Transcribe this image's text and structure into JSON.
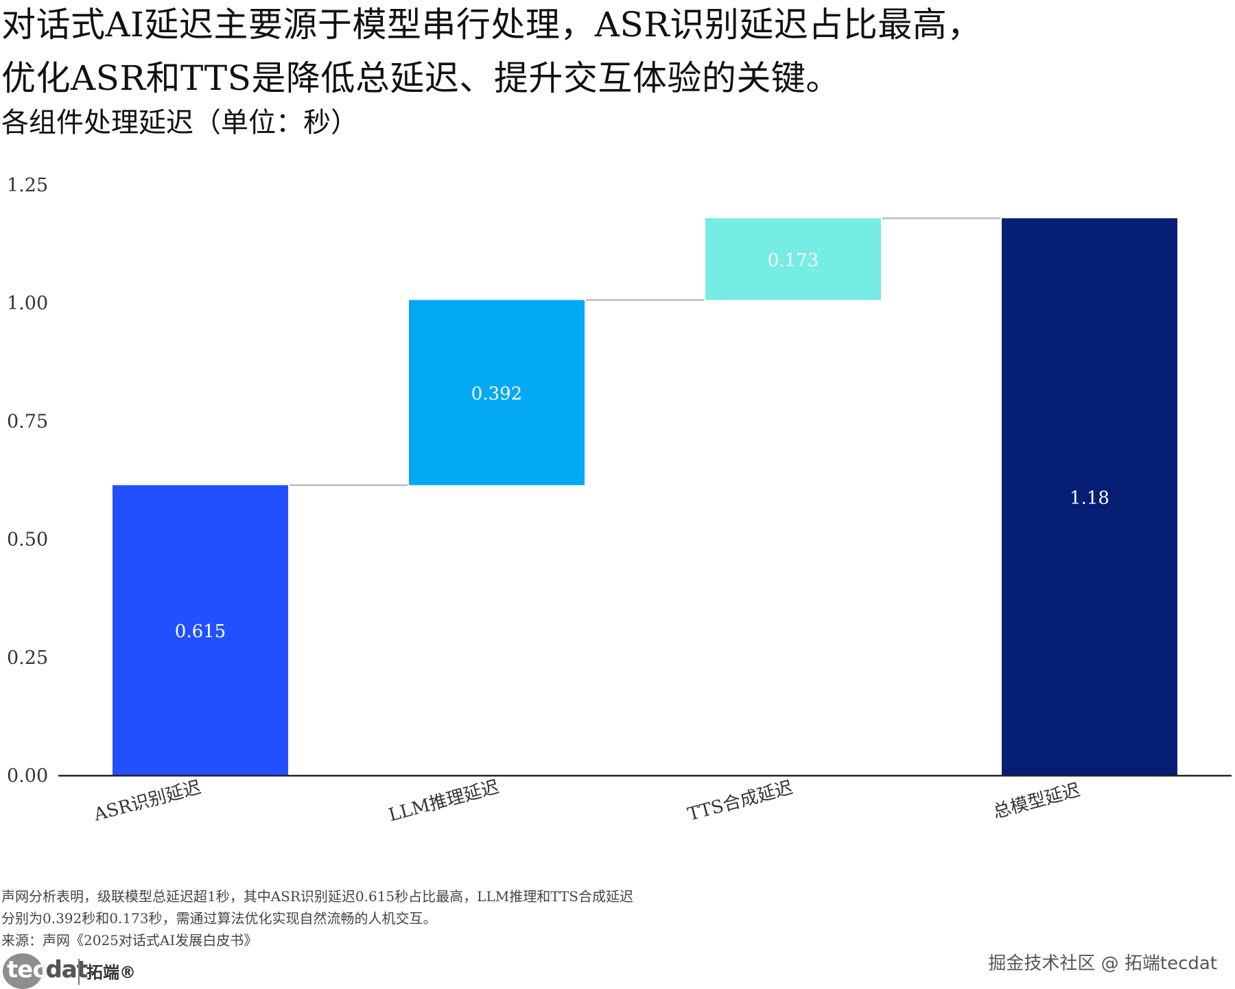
{
  "title_lines": [
    "对话式AI延迟主要源于模型串行处理，ASR识别延迟占比最高，",
    "优化ASR和TTS是降低总延迟、提升交互体验的关键。"
  ],
  "subtitle": "各组件处理延迟（单位：秒）",
  "colors": {
    "asr": "#2350FF",
    "llm": "#03A9F4",
    "tts": "#76EDE4",
    "total": "#061F74",
    "connector": "#BBBBBB",
    "axis": "#222222"
  },
  "chart_data": {
    "type": "waterfall",
    "title": "各组件处理延迟（单位：秒）",
    "categories": [
      "ASR识别延迟",
      "LLM推理延迟",
      "TTS合成延迟",
      "总模型延迟"
    ],
    "values": [
      0.615,
      0.392,
      0.173,
      1.18
    ],
    "labels": [
      "0.615",
      "0.392",
      "0.173",
      "1.18"
    ],
    "is_total": [
      false,
      false,
      false,
      true
    ],
    "ylim": [
      0,
      1.25
    ],
    "yticks": [
      "0.00",
      "0.25",
      "0.50",
      "0.75",
      "1.00",
      "1.25"
    ],
    "ytick_values": [
      0,
      0.25,
      0.5,
      0.75,
      1.0,
      1.25
    ],
    "xlabel": "",
    "ylabel": ""
  },
  "footnotes": [
    "声网分析表明，级联模型总延迟超1秒，其中ASR识别延迟0.615秒占比最高，LLM推理和TTS合成延迟",
    "分别为0.392秒和0.173秒，需通过算法优化实现自然流畅的人机交互。",
    "来源：声网《2025对话式AI发展白皮书》"
  ],
  "logo": {
    "brand_prefix": "tec",
    "brand_suffix": "dat",
    "brand_cn": "拓端®"
  },
  "watermark": "掘金技术社区 @ 拓端tecdat"
}
